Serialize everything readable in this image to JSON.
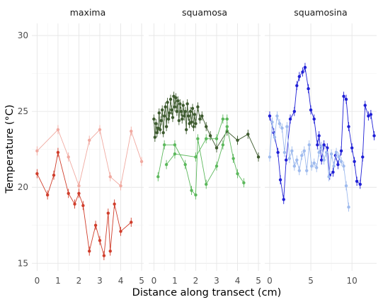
{
  "chart_data": {
    "type": "line",
    "facet_by": "species",
    "xlabel": "Distance along transect (cm)",
    "ylabel": "Temperature (°C)",
    "ylim": [
      14.5,
      30.8
    ],
    "yticks": [
      15,
      20,
      25,
      30
    ],
    "grid": true,
    "legend": "none",
    "error_bars": true,
    "panels": [
      {
        "title": "maxima",
        "xlim": [
          -0.25,
          5.1
        ],
        "xticks": [
          0,
          1,
          2,
          3,
          4,
          5
        ],
        "series": [
          {
            "color": "#f0a9a0",
            "x": [
              0.0,
              1.0,
              1.5,
              2.0,
              2.5,
              3.0,
              3.5,
              4.0,
              4.5,
              5.0
            ],
            "y": [
              22.4,
              23.8,
              22.0,
              20.1,
              23.1,
              23.8,
              20.7,
              20.1,
              23.7,
              21.7
            ],
            "err": [
              0.3,
              0.3,
              0.3,
              0.3,
              0.3,
              0.3,
              0.3,
              0.3,
              0.3,
              0.3
            ]
          },
          {
            "color": "#d03e2c",
            "x": [
              0.0,
              0.5,
              0.8,
              1.0,
              1.5,
              1.8,
              2.0,
              2.2,
              2.5,
              2.8,
              3.0,
              3.2,
              3.4,
              3.5,
              3.7,
              4.0,
              4.5
            ],
            "y": [
              20.9,
              19.5,
              20.8,
              22.3,
              19.6,
              18.9,
              19.6,
              18.8,
              15.8,
              17.5,
              16.5,
              15.5,
              18.3,
              15.8,
              18.9,
              17.1,
              17.7
            ],
            "err": [
              0.3,
              0.3,
              0.3,
              0.3,
              0.3,
              0.3,
              0.3,
              0.3,
              0.3,
              0.3,
              0.3,
              0.3,
              0.3,
              0.3,
              0.3,
              0.3,
              0.3
            ]
          }
        ]
      },
      {
        "title": "squamosa",
        "xlim": [
          -0.25,
          5.1
        ],
        "xticks": [
          0,
          1,
          2,
          3,
          4,
          5
        ],
        "series": [
          {
            "color": "#3d5a2e",
            "x": [
              0.0,
              0.05,
              0.1,
              0.15,
              0.2,
              0.25,
              0.3,
              0.35,
              0.4,
              0.45,
              0.5,
              0.55,
              0.6,
              0.65,
              0.7,
              0.75,
              0.8,
              0.85,
              0.9,
              0.95,
              1.0,
              1.05,
              1.1,
              1.15,
              1.2,
              1.25,
              1.3,
              1.35,
              1.4,
              1.45,
              1.5,
              1.55,
              1.6,
              1.65,
              1.7,
              1.75,
              1.8,
              1.85,
              1.9,
              1.95,
              2.0,
              2.1,
              2.2,
              2.3,
              2.5,
              2.7,
              3.0,
              3.5,
              4.0,
              4.5,
              5.0
            ],
            "y": [
              24.5,
              23.3,
              24.2,
              23.6,
              23.9,
              24.9,
              23.8,
              24.4,
              25.1,
              23.6,
              24.7,
              25.3,
              24.0,
              25.6,
              24.5,
              24.9,
              25.8,
              25.1,
              24.6,
              26.0,
              25.3,
              25.9,
              25.0,
              25.7,
              24.4,
              25.5,
              25.0,
              24.5,
              25.4,
              24.7,
              25.0,
              23.8,
              25.5,
              24.7,
              24.2,
              25.0,
              24.3,
              25.2,
              24.0,
              24.8,
              24.2,
              25.3,
              24.5,
              24.7,
              24.0,
              23.4,
              22.6,
              23.7,
              23.1,
              23.5,
              22.0
            ],
            "err": [
              0.3,
              0.3,
              0.3,
              0.3,
              0.3,
              0.3,
              0.3,
              0.3,
              0.3,
              0.3,
              0.3,
              0.3,
              0.3,
              0.3,
              0.3,
              0.3,
              0.3,
              0.3,
              0.3,
              0.3,
              0.3,
              0.3,
              0.3,
              0.3,
              0.3,
              0.3,
              0.3,
              0.3,
              0.3,
              0.3,
              0.3,
              0.3,
              0.3,
              0.3,
              0.3,
              0.3,
              0.3,
              0.3,
              0.3,
              0.3,
              0.3,
              0.3,
              0.3,
              0.3,
              0.3,
              0.3,
              0.3,
              0.3,
              0.3,
              0.3,
              0.3
            ]
          },
          {
            "color": "#5cb85c",
            "x": [
              0.2,
              0.5,
              1.0,
              1.5,
              1.8,
              2.0,
              2.1,
              2.5,
              3.0,
              3.3,
              3.5,
              3.8,
              4.0,
              4.3
            ],
            "y": [
              20.7,
              22.8,
              22.8,
              21.5,
              19.8,
              19.5,
              23.2,
              20.2,
              21.4,
              22.8,
              24.0,
              21.9,
              20.9,
              20.3
            ],
            "err": [
              0.3,
              0.3,
              0.3,
              0.3,
              0.3,
              0.3,
              0.3,
              0.3,
              0.3,
              0.3,
              0.3,
              0.3,
              0.3,
              0.3
            ]
          },
          {
            "color": "#5cb85c",
            "x": [
              0.6,
              1.0,
              2.0,
              2.5,
              3.0,
              3.3,
              3.5
            ],
            "y": [
              21.5,
              22.2,
              22.0,
              23.2,
              23.2,
              24.5,
              24.5
            ],
            "err": [
              0.3,
              0.3,
              0.3,
              0.3,
              0.3,
              0.3,
              0.3
            ]
          }
        ]
      },
      {
        "title": "squamosina",
        "xlim": [
          -0.6,
          13.0
        ],
        "xticks": [
          0,
          5,
          10
        ],
        "series": [
          {
            "color": "#1f1fd6",
            "x": [
              0.0,
              0.5,
              1.0,
              1.3,
              1.7,
              2.0,
              2.5,
              3.0,
              3.3,
              3.6,
              4.0,
              4.3,
              4.7,
              5.0,
              5.4,
              5.8,
              6.0,
              6.3,
              6.6,
              7.0,
              7.3,
              7.7,
              8.0,
              8.3,
              8.7,
              9.0,
              9.3,
              9.6,
              10.0,
              10.3,
              10.6,
              11.0,
              11.3,
              11.6,
              12.0,
              12.3,
              12.7
            ],
            "y": [
              24.7,
              23.6,
              22.3,
              20.5,
              19.2,
              21.8,
              24.5,
              25.0,
              26.7,
              27.3,
              27.6,
              27.9,
              26.5,
              25.1,
              24.5,
              22.8,
              23.4,
              21.8,
              22.8,
              22.6,
              20.8,
              21.0,
              22.1,
              21.5,
              22.4,
              26.0,
              25.8,
              24.0,
              22.6,
              21.7,
              20.4,
              20.2,
              22.0,
              25.4,
              24.7,
              24.8,
              23.4
            ],
            "err": [
              0.3,
              0.3,
              0.3,
              0.3,
              0.3,
              0.3,
              0.3,
              0.3,
              0.3,
              0.3,
              0.3,
              0.3,
              0.3,
              0.3,
              0.3,
              0.3,
              0.3,
              0.3,
              0.3,
              0.3,
              0.3,
              0.3,
              0.3,
              0.3,
              0.3,
              0.3,
              0.3,
              0.3,
              0.3,
              0.3,
              0.3,
              0.3,
              0.3,
              0.3,
              0.3,
              0.3,
              0.3
            ]
          },
          {
            "color": "#9fbbee",
            "x": [
              0.0,
              0.3,
              0.6,
              0.9,
              1.2,
              1.5,
              1.8,
              2.1,
              2.4,
              2.7,
              3.0,
              3.3,
              3.6,
              3.9,
              4.2,
              4.5,
              4.8,
              5.1,
              5.4,
              5.7,
              6.0,
              6.3,
              6.6,
              6.9,
              7.2,
              7.5,
              7.8,
              8.1,
              8.4,
              8.7,
              9.0,
              9.3,
              9.6
            ],
            "y": [
              22.0,
              24.3,
              23.3,
              24.7,
              24.2,
              23.9,
              22.3,
              24.0,
              21.9,
              22.4,
              21.4,
              21.8,
              21.1,
              22.1,
              22.4,
              21.1,
              22.8,
              21.4,
              21.6,
              21.3,
              22.3,
              22.7,
              21.8,
              22.3,
              20.7,
              22.2,
              21.4,
              22.3,
              22.0,
              21.7,
              21.4,
              20.1,
              18.7
            ],
            "err": [
              0.3,
              0.3,
              0.3,
              0.3,
              0.3,
              0.3,
              0.3,
              0.3,
              0.3,
              0.3,
              0.3,
              0.3,
              0.3,
              0.3,
              0.3,
              0.3,
              0.3,
              0.3,
              0.3,
              0.3,
              0.3,
              0.3,
              0.3,
              0.3,
              0.3,
              0.3,
              0.3,
              0.3,
              0.3,
              0.3,
              0.3,
              0.3,
              0.3
            ]
          }
        ]
      }
    ]
  }
}
